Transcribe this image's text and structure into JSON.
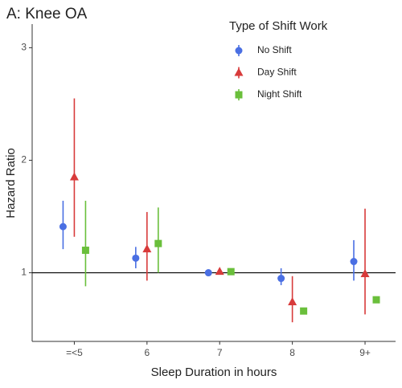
{
  "chart_data": {
    "type": "pointrange",
    "title": "A: Knee OA",
    "x_label": "Sleep Duration in hours",
    "y_label": "Hazard Ratio",
    "legend_title": "Type of Shift Work",
    "categories": [
      "=<5",
      "6",
      "7",
      "8",
      "9+"
    ],
    "series": [
      {
        "name": "No Shift",
        "color": "#4a6fe3",
        "marker": "circle",
        "values": [
          1.41,
          1.13,
          1.0,
          0.95,
          1.1
        ],
        "lower": [
          1.21,
          1.04,
          null,
          0.89,
          0.93
        ],
        "upper": [
          1.64,
          1.23,
          null,
          1.04,
          1.29
        ]
      },
      {
        "name": "Day Shift",
        "color": "#d83b3b",
        "marker": "triangle",
        "values": [
          1.85,
          1.21,
          1.01,
          0.74,
          0.99
        ],
        "lower": [
          1.32,
          0.93,
          null,
          0.56,
          0.63
        ],
        "upper": [
          2.55,
          1.54,
          null,
          0.97,
          1.57
        ]
      },
      {
        "name": "Night Shift",
        "color": "#6abf3b",
        "marker": "square",
        "values": [
          1.2,
          1.26,
          1.01,
          0.66,
          0.76
        ],
        "lower": [
          0.88,
          1.0,
          null,
          null,
          null
        ],
        "upper": [
          1.64,
          1.58,
          null,
          null,
          null
        ]
      }
    ],
    "ylim": [
      0.39,
      3.21
    ],
    "yticks": [
      1,
      2,
      3
    ],
    "hline": 1
  }
}
